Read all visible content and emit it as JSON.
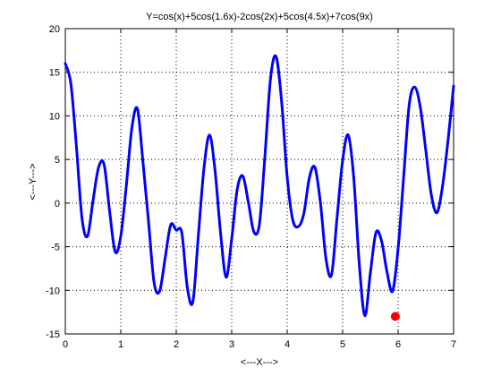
{
  "chart_data": {
    "type": "line",
    "title": "Y=cos(x)+5cos(1.6x)-2cos(2x)+5cos(4.5x)+7cos(9x)",
    "xlabel": "<---X--->",
    "ylabel": "<---Y--->",
    "xlim": [
      0,
      7
    ],
    "ylim": [
      -15,
      20
    ],
    "xticks": [
      0,
      1,
      2,
      3,
      4,
      5,
      6,
      7
    ],
    "yticks": [
      -15,
      -10,
      -5,
      0,
      5,
      10,
      15,
      20
    ],
    "grid": true,
    "grid_style": "dotted",
    "series": [
      {
        "color": "#0000ff",
        "x": [
          0,
          0.1,
          0.2,
          0.3,
          0.4,
          0.5,
          0.6,
          0.7,
          0.8,
          0.9,
          1.0,
          1.1,
          1.2,
          1.3,
          1.4,
          1.5,
          1.6,
          1.7,
          1.8,
          1.9,
          2.0,
          2.1,
          2.2,
          2.3,
          2.4,
          2.5,
          2.6,
          2.7,
          2.8,
          2.9,
          3.0,
          3.1,
          3.2,
          3.3,
          3.4,
          3.5,
          3.6,
          3.7,
          3.8,
          3.9,
          4.0,
          4.1,
          4.2,
          4.3,
          4.4,
          4.5,
          4.6,
          4.7,
          4.8,
          4.9,
          5.0,
          5.1,
          5.2,
          5.3,
          5.4,
          5.5,
          5.6,
          5.7,
          5.8,
          5.9,
          6.0,
          6.1,
          6.2,
          6.3,
          6.4,
          6.5,
          6.6,
          6.7,
          6.8,
          6.9,
          7.0
        ],
        "y": [
          16.0,
          13.7,
          6.5,
          -1.7,
          -3.8,
          0.3,
          4.1,
          4.4,
          -1.0,
          -5.6,
          -3.8,
          2.0,
          8.6,
          10.8,
          4.7,
          -2.1,
          -9.1,
          -10.1,
          -6.3,
          -2.5,
          -3.1,
          -3.4,
          -9.7,
          -11.3,
          -3.6,
          4.0,
          7.8,
          3.7,
          -3.5,
          -8.5,
          -4.1,
          1.6,
          3.1,
          0.1,
          -3.3,
          -2.4,
          5.5,
          14.3,
          16.8,
          11.6,
          3.0,
          -1.9,
          -2.7,
          -1.2,
          2.9,
          4.1,
          0.0,
          -6.4,
          -8.2,
          -1.6,
          4.9,
          7.8,
          2.9,
          -7.0,
          -12.9,
          -8.0,
          -3.4,
          -4.3,
          -7.9,
          -10.1,
          -5.2,
          3.0,
          11.3,
          13.3,
          11.0,
          6.0,
          0.9,
          -1.1,
          1.9,
          7.2,
          13.4
        ]
      }
    ],
    "highlight_point": {
      "x": 5.95,
      "y": -13.0,
      "color": "#ff0000"
    }
  }
}
